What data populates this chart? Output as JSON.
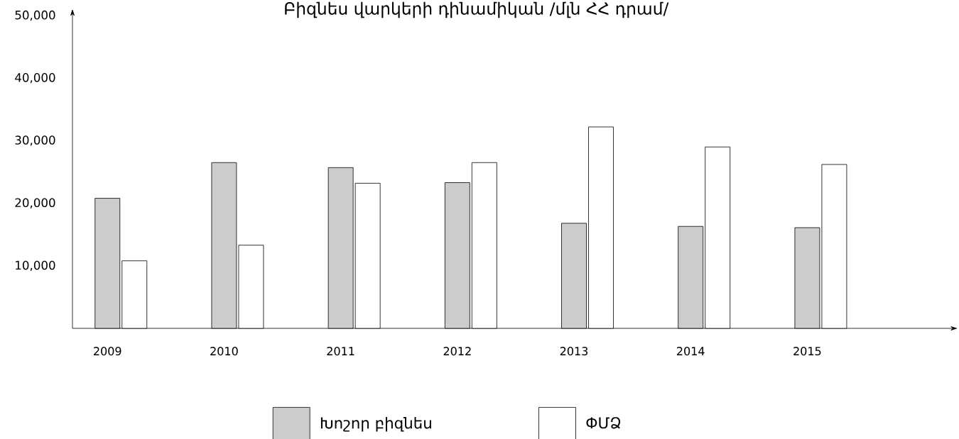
{
  "chart_data": {
    "type": "bar",
    "title": "Բիզնես վարկերի դինամիկան /մլն ՀՀ դրամ/",
    "categories": [
      "2009",
      "2010",
      "2011",
      "2012",
      "2013",
      "2014",
      "2015"
    ],
    "series": [
      {
        "name": "Խոշոր բիզնես",
        "color": "#cccccc",
        "values": [
          20800,
          26500,
          25700,
          23300,
          16800,
          16300,
          16100
        ]
      },
      {
        "name": "ՓՄՁ",
        "color": "#ffffff",
        "values": [
          10800,
          13300,
          23200,
          26500,
          32200,
          29000,
          26200
        ]
      }
    ],
    "ylim": [
      0,
      50000
    ],
    "yticks": [
      {
        "value": 10000,
        "label": "10,000"
      },
      {
        "value": 20000,
        "label": "20,000"
      },
      {
        "value": 30000,
        "label": "30,000"
      },
      {
        "value": 40000,
        "label": "40,000"
      },
      {
        "value": 50000,
        "label": "50,000"
      }
    ],
    "legend": "bottom"
  }
}
